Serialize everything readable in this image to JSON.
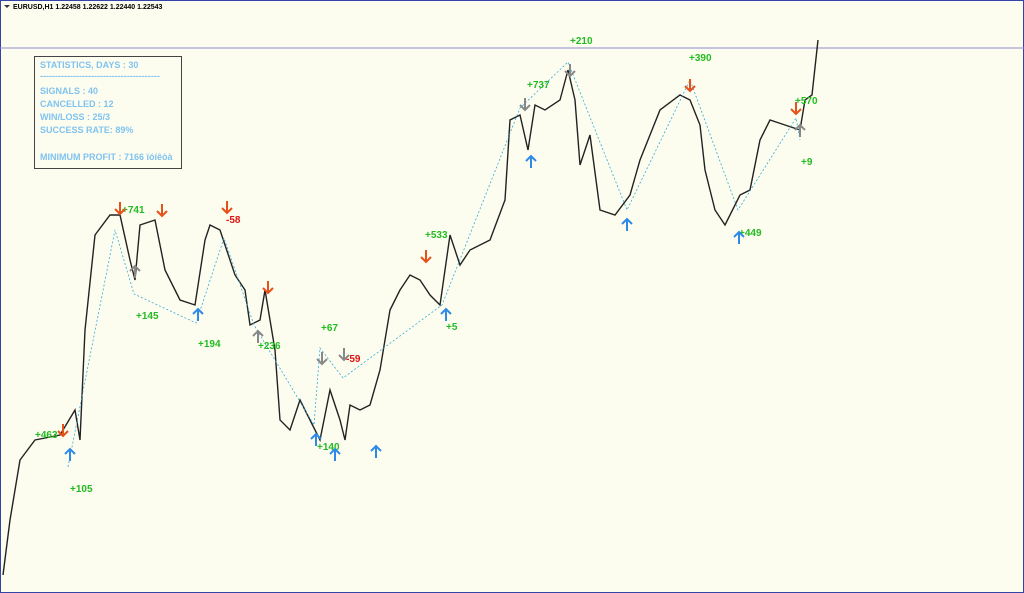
{
  "header": {
    "title": "EURUSD,H1 1.22458 1.22622 1.22440 1.22543"
  },
  "statistics": {
    "heading": "STATISTICS, DAYS : 30",
    "separator": "----------------------------------------",
    "lines": [
      "SIGNALS : 40",
      "CANCELLED : 12",
      "WIN/LOSS : 25/3",
      "SUCCESS RATE: 89%"
    ],
    "profit": "MINIMUM PROFIT : 7166 ïóíêòà"
  },
  "labels": [
    {
      "text": "+210",
      "kind": "win"
    },
    {
      "text": "+390",
      "kind": "win"
    },
    {
      "text": "+737",
      "kind": "win"
    },
    {
      "text": "+741",
      "kind": "win"
    },
    {
      "text": "-58",
      "kind": "loss"
    },
    {
      "text": "+533",
      "kind": "win"
    },
    {
      "text": "+145",
      "kind": "win"
    },
    {
      "text": "+194",
      "kind": "win"
    },
    {
      "text": "+236",
      "kind": "win"
    },
    {
      "text": "+67",
      "kind": "win"
    },
    {
      "text": "-59",
      "kind": "loss"
    },
    {
      "text": "+5",
      "kind": "win"
    },
    {
      "text": "+449",
      "kind": "win"
    },
    {
      "text": "+9",
      "kind": "win"
    },
    {
      "text": "+570",
      "kind": "win"
    },
    {
      "text": "+463",
      "kind": "win"
    },
    {
      "text": "+105",
      "kind": "win"
    },
    {
      "text": "+140",
      "kind": "win"
    }
  ]
}
